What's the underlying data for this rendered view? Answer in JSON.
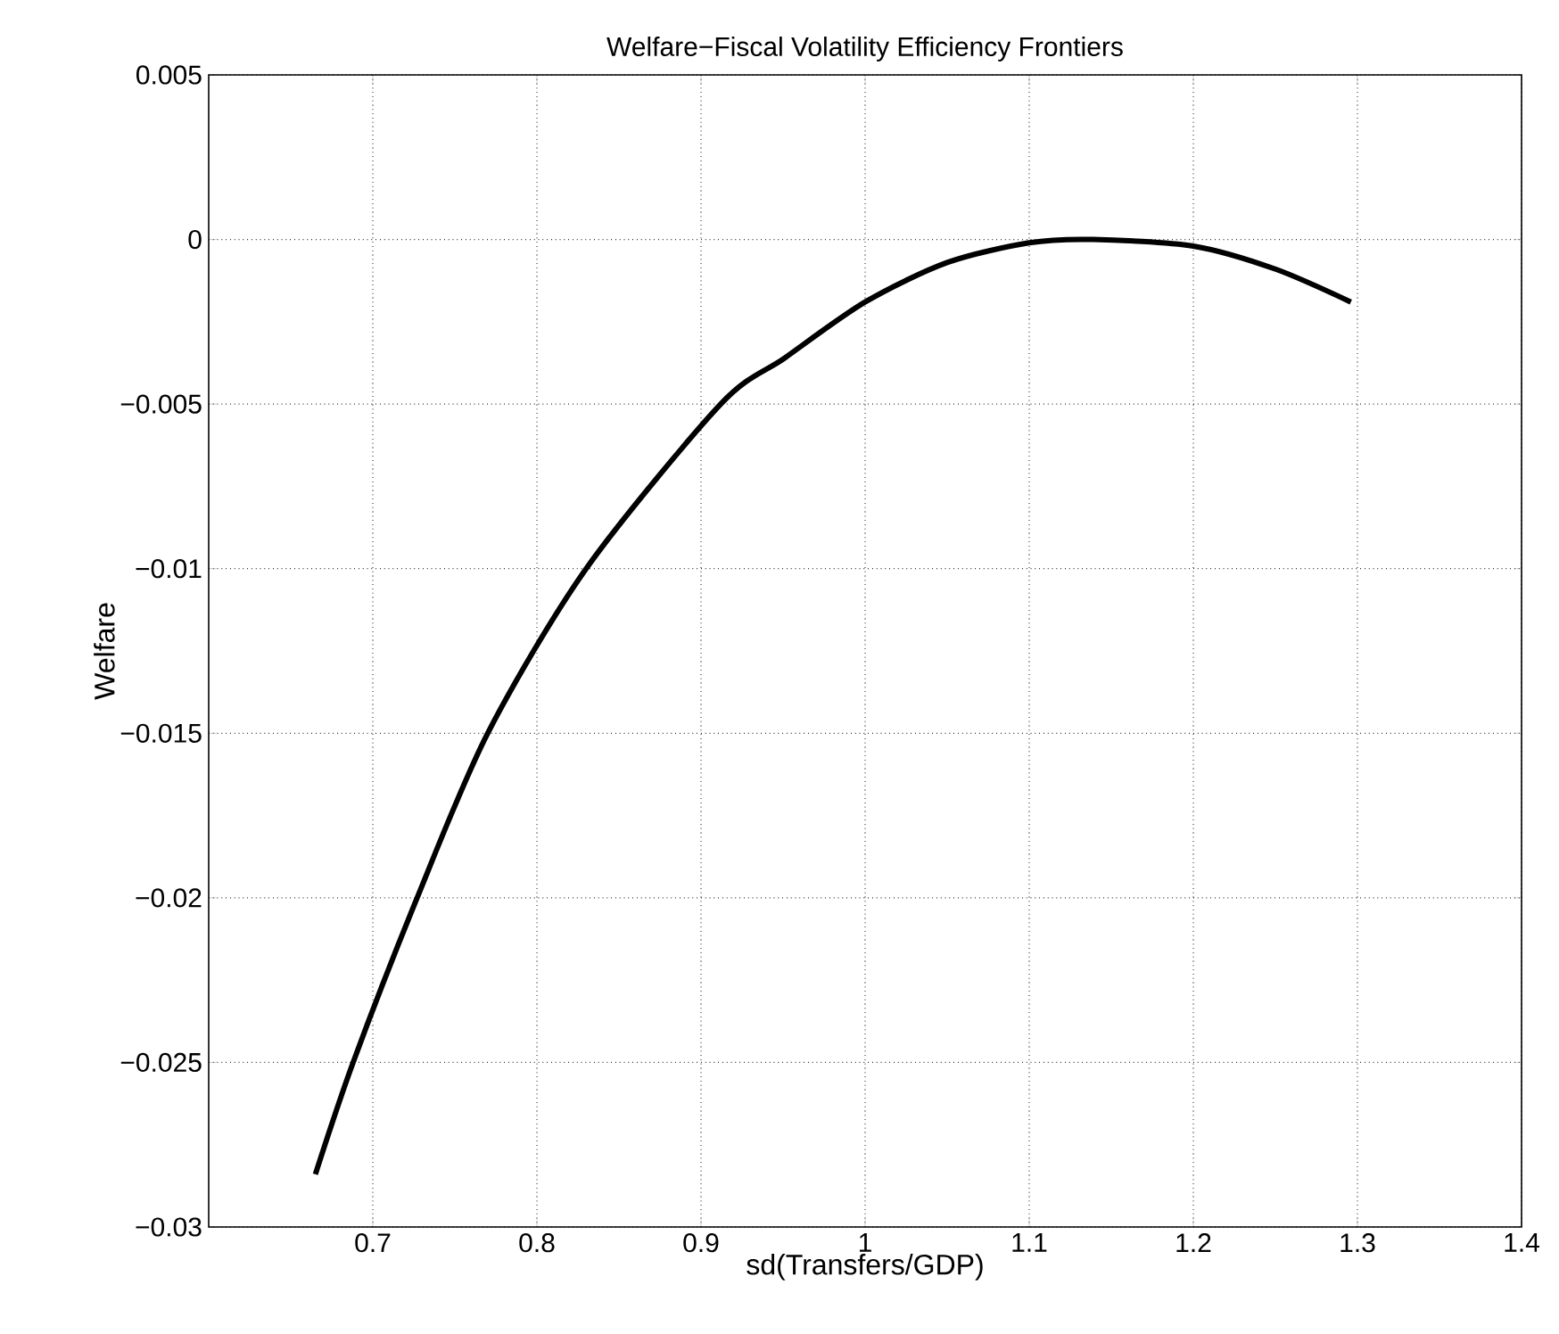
{
  "chart_data": {
    "type": "line",
    "title": "Welfare−Fiscal Volatility Efficiency Frontiers",
    "xlabel": "sd(Transfers/GDP)",
    "ylabel": "Welfare",
    "x": [
      0.665,
      0.688,
      0.727,
      0.77,
      0.83,
      0.912,
      0.951,
      1.0,
      1.05,
      1.1,
      1.139,
      1.2,
      1.25,
      1.296
    ],
    "series": [
      {
        "color": "#000000",
        "values": [
          -0.0284,
          -0.025,
          -0.02,
          -0.015,
          -0.01,
          -0.005,
          -0.0036,
          -0.0019,
          -0.0007,
          -0.0001,
          0,
          -0.0002,
          -0.0009,
          -0.0019
        ]
      }
    ],
    "xlim": [
      0.6,
      1.4
    ],
    "ylim": [
      -0.03,
      0.005
    ],
    "xticks": [
      0.7,
      0.8,
      0.9,
      1,
      1.1,
      1.2,
      1.3,
      1.4
    ],
    "yticks": [
      {
        "value": -0.03,
        "label": "−0.03"
      },
      {
        "value": -0.025,
        "label": "−0.025"
      },
      {
        "value": -0.02,
        "label": "−0.02"
      },
      {
        "value": -0.015,
        "label": "−0.015"
      },
      {
        "value": -0.01,
        "label": "−0.01"
      },
      {
        "value": -0.005,
        "label": "−0.005"
      },
      0,
      0.005
    ],
    "grid": true,
    "line_style": "solid",
    "marker": "none"
  }
}
